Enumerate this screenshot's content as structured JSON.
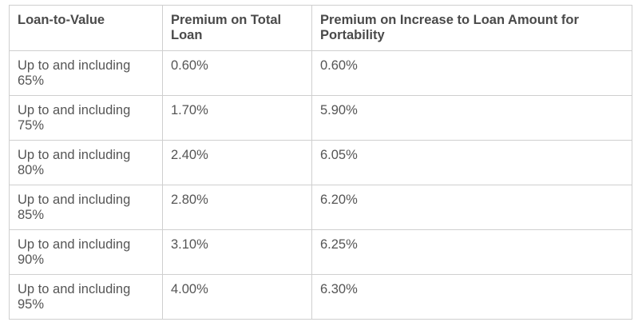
{
  "table": {
    "headers": [
      "Loan-to-Value",
      "Premium on Total Loan",
      "Premium on Increase to Loan Amount for Portability"
    ],
    "rows": [
      [
        "Up to and including 65%",
        "0.60%",
        "0.60%"
      ],
      [
        "Up to and including 75%",
        "1.70%",
        "5.90%"
      ],
      [
        "Up to and including 80%",
        "2.40%",
        "6.05%"
      ],
      [
        "Up to and including 85%",
        "2.80%",
        "6.20%"
      ],
      [
        "Up to and including 90%",
        "3.10%",
        "6.25%"
      ],
      [
        "Up to and including 95%",
        "4.00%",
        "6.30%"
      ]
    ]
  }
}
